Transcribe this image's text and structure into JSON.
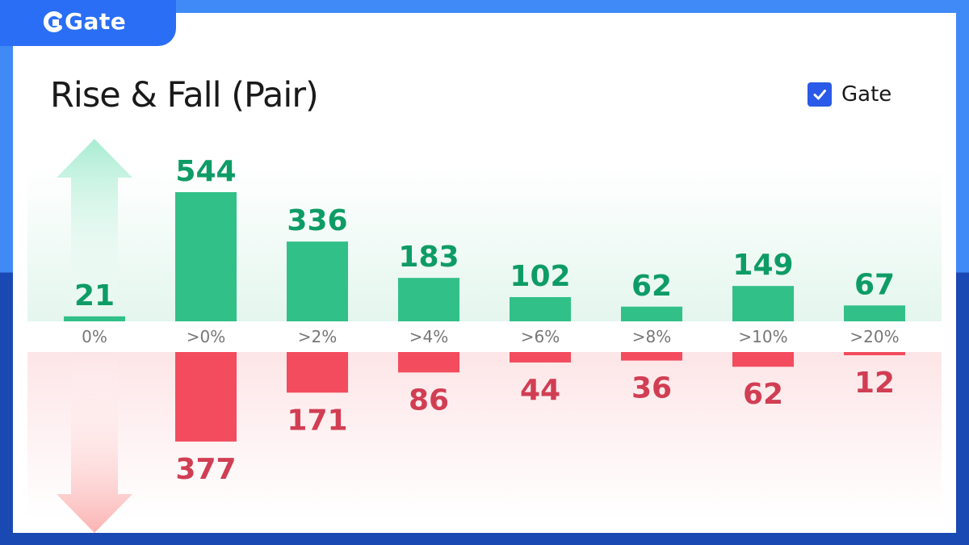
{
  "brand": {
    "name": "Gate",
    "logo_icon": "gate-logo-icon"
  },
  "legend": {
    "label": "Gate",
    "checked": true
  },
  "colors": {
    "rise": "#32c089",
    "rise_text": "#0e9c66",
    "fall": "#f34c5e",
    "fall_text": "#d13e53",
    "tick_text": "#777777",
    "accent": "#2a6ef5"
  },
  "chart_data": {
    "type": "bar",
    "title": "Rise & Fall (Pair)",
    "categories": [
      "0%",
      ">0%",
      ">2%",
      ">4%",
      ">6%",
      ">8%",
      ">10%",
      ">20%"
    ],
    "series": [
      {
        "name": "",
        "values": [
          21,
          544,
          336,
          183,
          102,
          62,
          149,
          67
        ]
      },
      {
        "name": "",
        "values": [
          0,
          377,
          171,
          86,
          44,
          36,
          62,
          12
        ]
      }
    ],
    "legend": {
      "entries": [
        "Gate"
      ],
      "position": "top-right"
    },
    "grid": false
  }
}
